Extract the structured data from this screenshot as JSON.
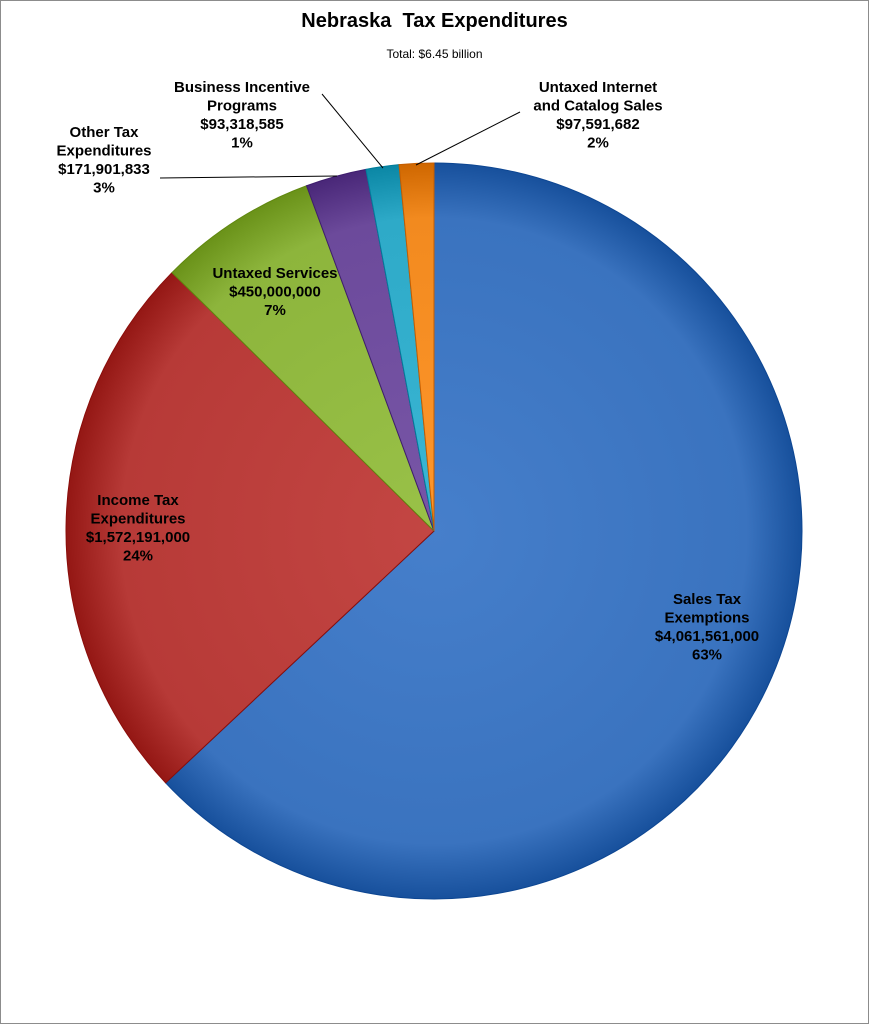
{
  "chart_data": {
    "type": "pie",
    "title": "Nebraska  Tax Expenditures",
    "subtitle": "Total: $6.45 billion",
    "slices": [
      {
        "name": "Sales Tax Exemptions",
        "label_lines": [
          "Sales Tax",
          "Exemptions"
        ],
        "value": 4061561000,
        "value_text": "$4,061,561,000",
        "percent_text": "63%",
        "color": "#3a73bf"
      },
      {
        "name": "Income Tax Expenditures",
        "label_lines": [
          "Income Tax",
          "Expenditures"
        ],
        "value": 1572191000,
        "value_text": "$1,572,191,000",
        "percent_text": "24%",
        "color": "#b73a37"
      },
      {
        "name": "Untaxed Services",
        "label_lines": [
          "Untaxed Services"
        ],
        "value": 450000000,
        "value_text": "$450,000,000",
        "percent_text": "7%",
        "color": "#8db53c"
      },
      {
        "name": "Other Tax Expenditures",
        "label_lines": [
          "Other Tax",
          "Expenditures"
        ],
        "value": 171901833,
        "value_text": "$171,901,833",
        "percent_text": "3%",
        "color": "#6c4a9b"
      },
      {
        "name": "Business Incentive Programs",
        "label_lines": [
          "Business Incentive",
          "Programs"
        ],
        "value": 93318585,
        "value_text": "$93,318,585",
        "percent_text": "1%",
        "color": "#2eaac8"
      },
      {
        "name": "Untaxed Internet and Catalog Sales",
        "label_lines": [
          "Untaxed Internet",
          "and Catalog Sales"
        ],
        "value": 97591682,
        "value_text": "$97,591,682",
        "percent_text": "2%",
        "color": "#f28a1f"
      }
    ]
  }
}
